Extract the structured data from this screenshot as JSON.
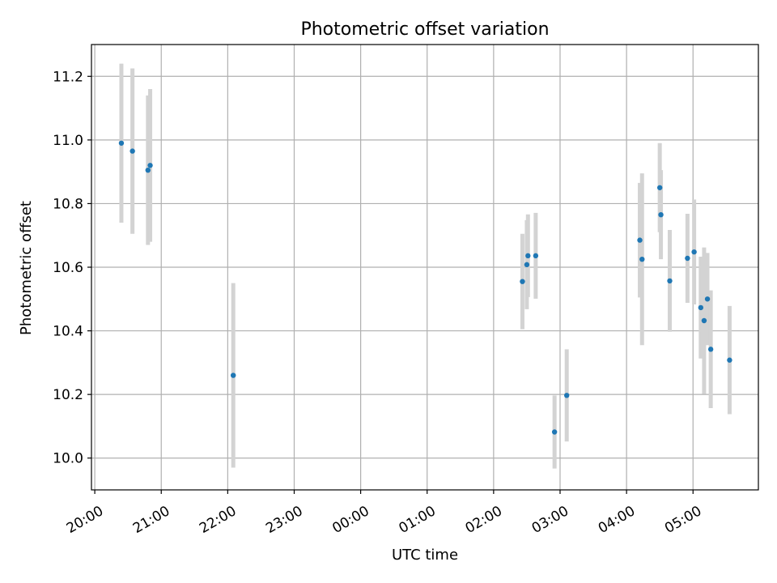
{
  "chart_data": {
    "type": "scatter",
    "title": "Photometric offset variation",
    "xlabel": "UTC time",
    "ylabel": "Photometric offset",
    "x_is_time": true,
    "x_axis_hours_range": [
      "19:57",
      "05:59"
    ],
    "ylim": [
      9.9,
      11.3
    ],
    "xticks": [
      "20:00",
      "21:00",
      "22:00",
      "23:00",
      "00:00",
      "01:00",
      "02:00",
      "03:00",
      "04:00",
      "05:00"
    ],
    "yticks": [
      10.0,
      10.2,
      10.4,
      10.6,
      10.8,
      11.0,
      11.2
    ],
    "grid": true,
    "marker_color": "#1f77b4",
    "errorbar_color": "#d3d3d3",
    "points": [
      {
        "x": "20:24",
        "y": 10.99,
        "err": 0.25
      },
      {
        "x": "20:34",
        "y": 10.965,
        "err": 0.26
      },
      {
        "x": "20:48",
        "y": 10.905,
        "err": 0.235
      },
      {
        "x": "20:50",
        "y": 10.92,
        "err": 0.24
      },
      {
        "x": "22:05",
        "y": 10.26,
        "err": 0.29
      },
      {
        "x": "02:26",
        "y": 10.555,
        "err": 0.15
      },
      {
        "x": "02:30",
        "y": 10.608,
        "err": 0.14
      },
      {
        "x": "02:31",
        "y": 10.636,
        "err": 0.13
      },
      {
        "x": "02:38",
        "y": 10.636,
        "err": 0.135
      },
      {
        "x": "02:55",
        "y": 10.082,
        "err": 0.115
      },
      {
        "x": "03:06",
        "y": 10.197,
        "err": 0.145
      },
      {
        "x": "04:12",
        "y": 10.685,
        "err": 0.18
      },
      {
        "x": "04:14",
        "y": 10.625,
        "err": 0.27
      },
      {
        "x": "04:30",
        "y": 10.85,
        "err": 0.14
      },
      {
        "x": "04:31",
        "y": 10.765,
        "err": 0.14
      },
      {
        "x": "04:39",
        "y": 10.557,
        "err": 0.16
      },
      {
        "x": "04:55",
        "y": 10.628,
        "err": 0.14
      },
      {
        "x": "05:01",
        "y": 10.648,
        "err": 0.165
      },
      {
        "x": "05:07",
        "y": 10.473,
        "err": 0.16
      },
      {
        "x": "05:10",
        "y": 10.432,
        "err": 0.23
      },
      {
        "x": "05:13",
        "y": 10.5,
        "err": 0.145
      },
      {
        "x": "05:16",
        "y": 10.342,
        "err": 0.185
      },
      {
        "x": "05:33",
        "y": 10.308,
        "err": 0.17
      }
    ]
  }
}
